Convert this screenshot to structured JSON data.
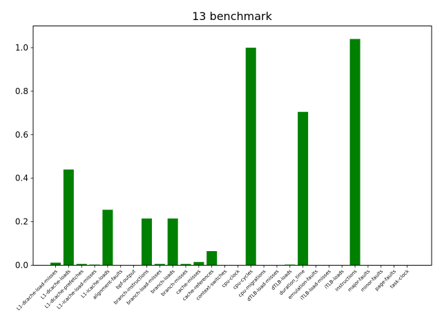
{
  "chart_data": {
    "type": "bar",
    "title": "13 benchmark",
    "xlabel": "",
    "ylabel": "",
    "ylim": [
      0,
      1.1
    ],
    "yticks": [
      0.0,
      0.2,
      0.4,
      0.6,
      0.8,
      1.0
    ],
    "ytick_labels": [
      "0.0",
      "0.2",
      "0.4",
      "0.6",
      "0.8",
      "1.0"
    ],
    "grid": false,
    "bar_color": "#008000",
    "categories": [
      "L1-dcache-load-misses",
      "L1-dcache-loads",
      "L1-dcache-prefetches",
      "L1-icache-load-misses",
      "L1-icache-loads",
      "alignment-faults",
      "bpf-output",
      "branch-instructions",
      "branch-load-misses",
      "branch-loads",
      "branch-misses",
      "cache-misses",
      "cache-references",
      "context-switches",
      "cpu-clock",
      "cpu-cycles",
      "cpu-migrations",
      "dTLB-load-misses",
      "dTLB-loads",
      "duration_time",
      "emulation-faults",
      "iTLB-load-misses",
      "iTLB-loads",
      "instructions",
      "major-faults",
      "minor-faults",
      "page-faults",
      "task-clock"
    ],
    "values": [
      0.012,
      0.44,
      0.006,
      0.003,
      0.255,
      0.0,
      0.0,
      0.215,
      0.006,
      0.215,
      0.006,
      0.015,
      0.065,
      0.0,
      0.0,
      1.0,
      0.0,
      0.0,
      0.003,
      0.705,
      0.0,
      0.0,
      0.0,
      1.04,
      0.0,
      0.0,
      0.0,
      0.0
    ]
  }
}
